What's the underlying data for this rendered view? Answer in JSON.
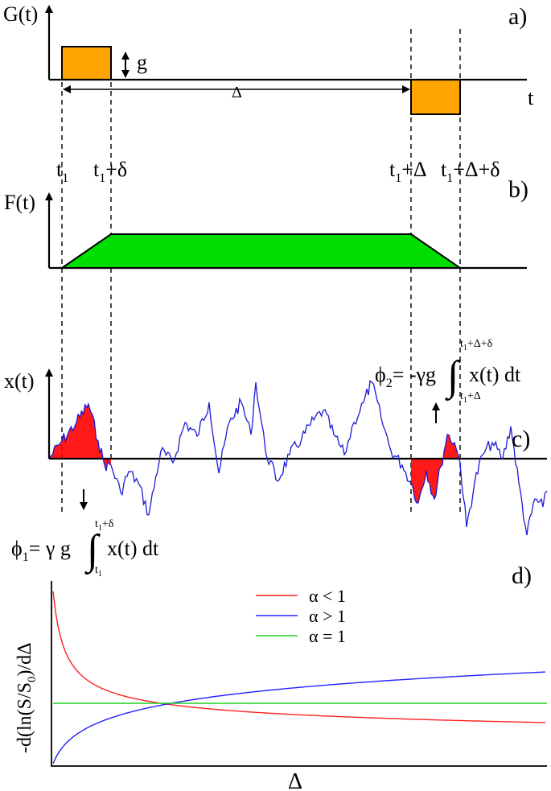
{
  "panels": {
    "a": {
      "tag": "a)",
      "ylabel": "G(t)",
      "xlabel": "t",
      "amplitude_label": "g",
      "interval_label": "Δ",
      "pulse_color": "#ffa500"
    },
    "b": {
      "tag": "b)",
      "ylabel": "F(t)",
      "fill_color": "#00dd00"
    },
    "c": {
      "tag": "c)",
      "ylabel": "x(t)",
      "trace_color": "#1a1ad8",
      "shade_color": "#ff0000",
      "phi1": {
        "lhs": "ϕ",
        "lhs_sub": "1",
        "rhs": "= γ g",
        "integrand": "x(t) dt",
        "upper_main": "t",
        "upper_sub": "1",
        "upper_rest": "+δ",
        "lower_main": "t",
        "lower_sub": "1"
      },
      "phi2": {
        "lhs": "ϕ",
        "lhs_sub": "2",
        "rhs": "= -γg",
        "integrand": "x(t) dt",
        "upper_main": "t",
        "upper_sub": "1",
        "upper_rest": "+Δ+δ",
        "lower_main": "t",
        "lower_sub": "1",
        "lower_rest": "+Δ"
      }
    },
    "d": {
      "tag": "d)",
      "ylabel_parts": [
        "-d(ln(S/S",
        "0",
        ")/dΔ"
      ],
      "xlabel": "Δ",
      "legend": [
        {
          "label": "α < 1",
          "color": "#ff2020"
        },
        {
          "label": "α > 1",
          "color": "#2020ff"
        },
        {
          "label": "α = 1",
          "color": "#20d020"
        }
      ]
    }
  },
  "time_marks": [
    {
      "main": "t",
      "sub": "1",
      "rest": ""
    },
    {
      "main": "t",
      "sub": "1",
      "rest": "+δ"
    },
    {
      "main": "t",
      "sub": "1",
      "rest": "+Δ"
    },
    {
      "main": "t",
      "sub": "1",
      "rest": "+Δ+δ"
    }
  ]
}
